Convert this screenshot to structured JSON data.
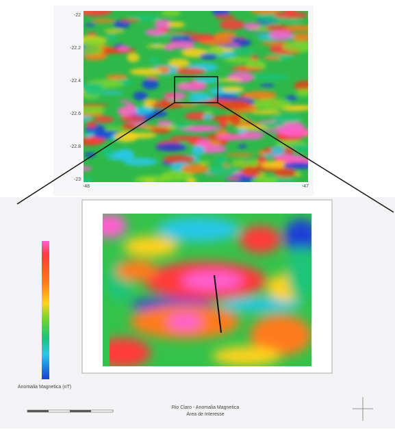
{
  "top_map": {
    "yticks": [
      "-22",
      "-22.2",
      "-22.4",
      "-22.6",
      "-22.8",
      "-23"
    ],
    "xticks": [
      "-48",
      "-47"
    ]
  },
  "detail_map": {
    "colorbar_label": "Anomalia Magnetica (nT)",
    "title": "Rio Claro - Anomalia Magnetica",
    "subtitle": "Area de Interesse"
  }
}
